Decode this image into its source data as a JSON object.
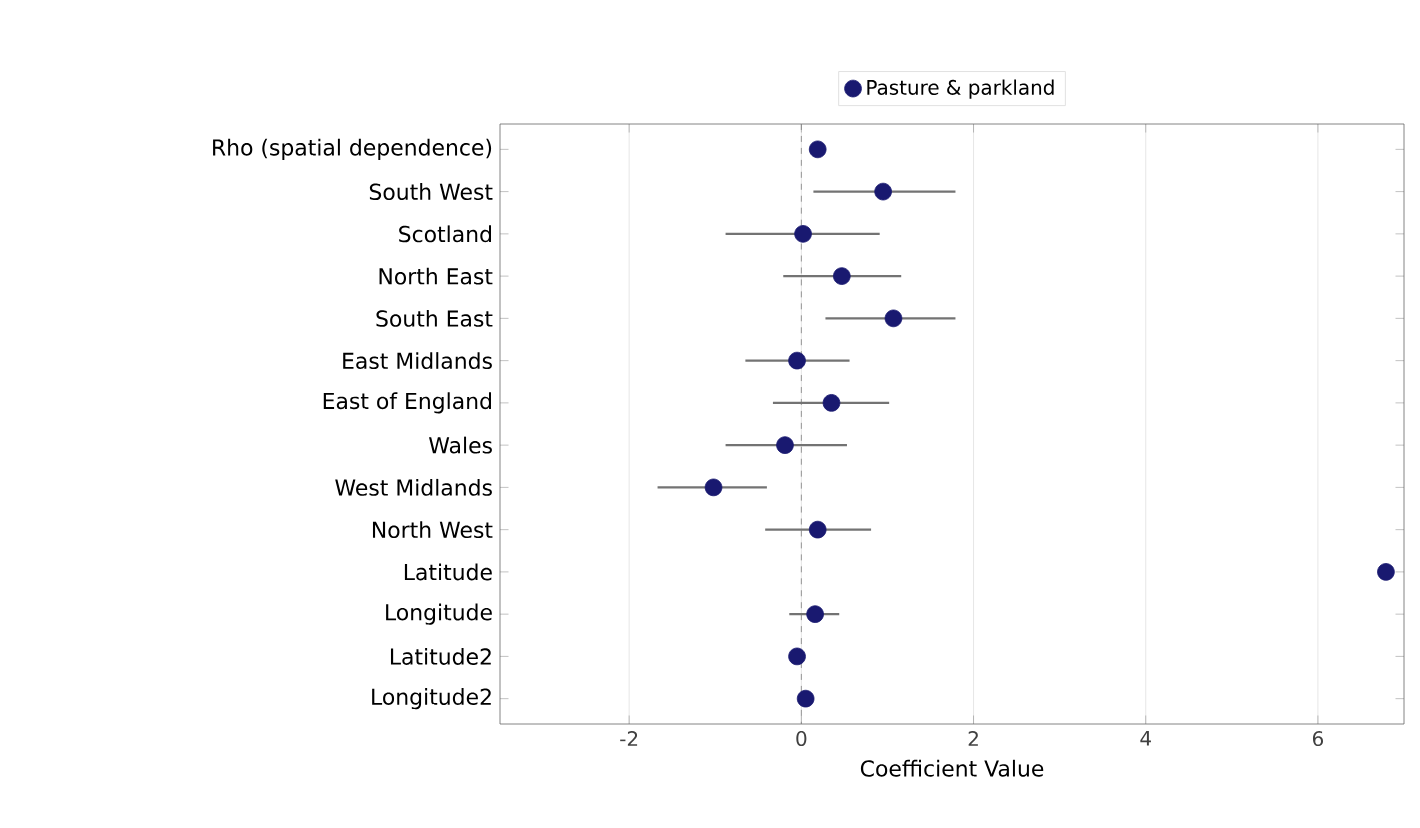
{
  "chart_data": {
    "type": "scatter",
    "orientation": "horizontal",
    "xlabel": "Coefficient Value",
    "categories": [
      "Rho (spatial dependence)",
      "South West",
      "Scotland",
      "North East",
      "South East",
      "East Midlands",
      "East of England",
      "Wales",
      "West Midlands",
      "North West",
      "Latitude",
      "Longitude",
      "Latitude2",
      "Longitude2"
    ],
    "series": [
      {
        "name": "Pasture & parkland",
        "color": "#191970",
        "values": [
          0.19,
          0.95,
          0.02,
          0.47,
          1.07,
          -0.05,
          0.35,
          -0.19,
          -1.02,
          0.19,
          6.79,
          0.16,
          -0.05,
          0.05
        ],
        "errors": [
          null,
          [
            0.14,
            1.79
          ],
          [
            -0.88,
            0.91
          ],
          [
            -0.21,
            1.16
          ],
          [
            0.28,
            1.79
          ],
          [
            -0.65,
            0.56
          ],
          [
            -0.33,
            1.02
          ],
          [
            -0.88,
            0.53
          ],
          [
            -1.67,
            -0.4
          ],
          [
            -0.42,
            0.81
          ],
          null,
          [
            -0.14,
            0.44
          ],
          null,
          null
        ]
      }
    ],
    "xlim": [
      -3.5,
      7.0
    ],
    "xticks": [
      -2,
      0,
      2,
      4,
      6
    ],
    "ref_lines": [
      {
        "axis": "x",
        "value": 0,
        "color": "#808080",
        "line_style": "dashed"
      }
    ],
    "grid": "x",
    "legend": "top"
  }
}
